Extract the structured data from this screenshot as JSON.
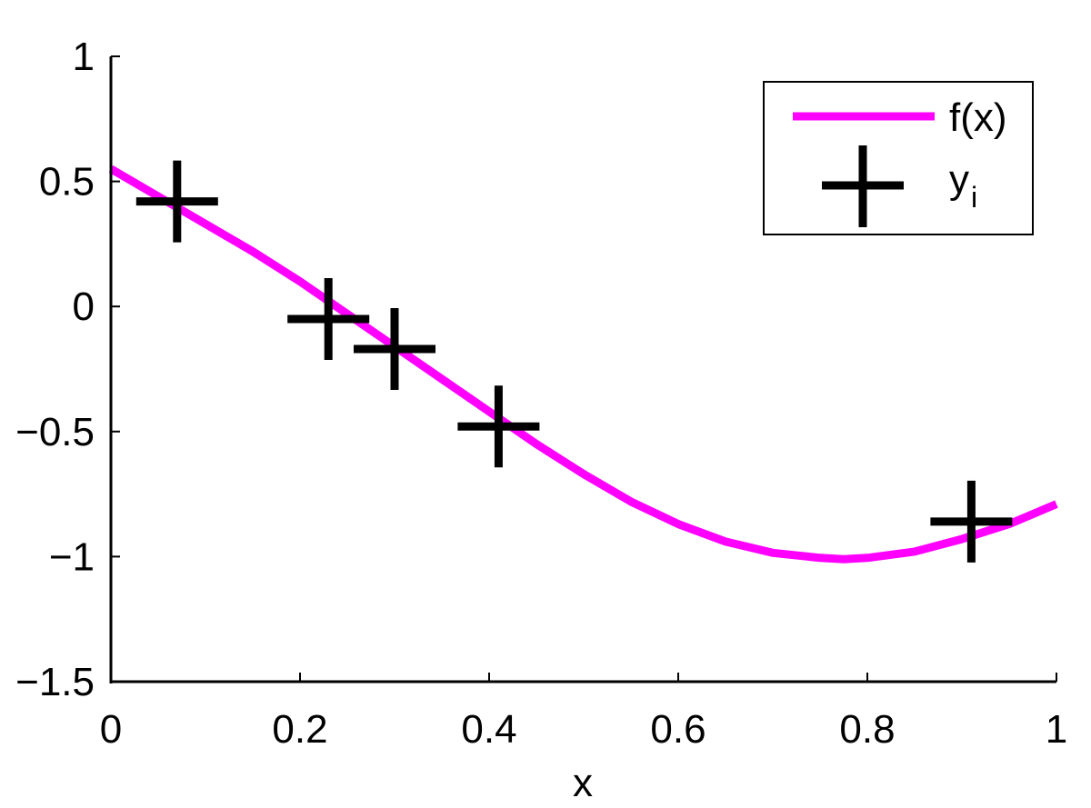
{
  "chart_data": {
    "type": "line",
    "title": "",
    "xlabel": "x",
    "ylabel": "",
    "xlim": [
      0,
      1
    ],
    "ylim": [
      -1.5,
      1
    ],
    "xticks": [
      0,
      0.2,
      0.4,
      0.6,
      0.8,
      1
    ],
    "xtick_labels": [
      "0",
      "0.2",
      "0.4",
      "0.6",
      "0.8",
      "1"
    ],
    "yticks": [
      1,
      0.5,
      0,
      -0.5,
      -1,
      -1.5
    ],
    "ytick_labels": [
      "1",
      "0.5",
      "0",
      "−0.5",
      "−1",
      "−1.5"
    ],
    "grid": false,
    "legend_position": "top-right",
    "series": [
      {
        "name": "f(x)",
        "kind": "line",
        "color": "#ff00ff",
        "x": [
          0,
          0.05,
          0.1,
          0.15,
          0.2,
          0.25,
          0.3,
          0.35,
          0.4,
          0.45,
          0.5,
          0.55,
          0.6,
          0.65,
          0.7,
          0.75,
          0.775,
          0.8,
          0.85,
          0.9,
          0.95,
          1.0
        ],
        "y": [
          0.55,
          0.44,
          0.33,
          0.22,
          0.1,
          -0.03,
          -0.16,
          -0.29,
          -0.42,
          -0.55,
          -0.67,
          -0.78,
          -0.87,
          -0.94,
          -0.985,
          -1.005,
          -1.01,
          -1.005,
          -0.98,
          -0.93,
          -0.87,
          -0.79
        ]
      },
      {
        "name": "y",
        "name_subscript": "i",
        "kind": "marker",
        "marker": "plus",
        "color": "#000000",
        "x": [
          0.07,
          0.23,
          0.3,
          0.41,
          0.91
        ],
        "y": [
          0.42,
          -0.05,
          -0.17,
          -0.48,
          -0.86
        ]
      }
    ]
  }
}
